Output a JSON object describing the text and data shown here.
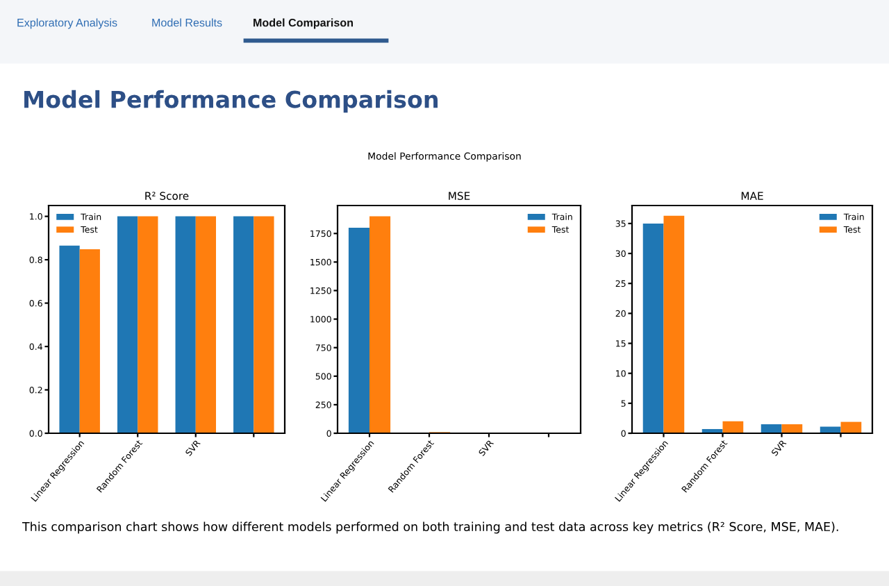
{
  "chart_data": [
    {
      "type": "other",
      "title": "Model Performance Comparison",
      "subtitle": "Model Performance Comparison",
      "annotations": [
        "Exploratory Analysis",
        "Model Results",
        "Model Comparison",
        "This comparison chart shows how different models performed on both training and test data across key metrics (R² Score, MSE, MAE)."
      ]
    },
    {
      "type": "bar",
      "title": "R² Score",
      "categories": [
        "Linear Regression",
        "Random Forest",
        "SVR",
        null
      ],
      "legend": "top left",
      "series": [
        {
          "name": "Train",
          "color": "#1f77b4",
          "values": [
            0.865,
            1.0,
            1.0,
            1.0
          ]
        },
        {
          "name": "Test",
          "color": "#ff7f0e",
          "values": [
            0.848,
            1.0,
            1.0,
            1.0
          ]
        }
      ],
      "ylim": [
        0,
        1.05
      ],
      "yticks": [
        {
          "value": 0,
          "label": "0.0"
        },
        {
          "value": 0.2,
          "label": "0.2"
        },
        {
          "value": 0.4,
          "label": "0.4"
        },
        {
          "value": 0.6,
          "label": "0.6"
        },
        {
          "value": 0.8,
          "label": "0.8"
        },
        {
          "value": 1.0,
          "label": "1.0"
        }
      ]
    },
    {
      "type": "bar",
      "title": "MSE",
      "categories": [
        "Linear Regression",
        "Random Forest",
        "SVR",
        null
      ],
      "legend": "top right",
      "series": [
        {
          "name": "Train",
          "color": "#1f77b4",
          "values": [
            1800,
            0,
            0,
            0
          ]
        },
        {
          "name": "Test",
          "color": "#ff7f0e",
          "values": [
            1900,
            10,
            0,
            0
          ]
        }
      ],
      "ylim": [
        0,
        1995
      ],
      "yticks": [
        0,
        250,
        500,
        750,
        1000,
        1250,
        1500,
        1750
      ]
    },
    {
      "type": "bar",
      "title": "MAE",
      "categories": [
        "Linear Regression",
        "Random Forest",
        "SVR",
        null
      ],
      "legend": "top right",
      "series": [
        {
          "name": "Train",
          "color": "#1f77b4",
          "values": [
            35.0,
            0.7,
            1.5,
            1.1
          ]
        },
        {
          "name": "Test",
          "color": "#ff7f0e",
          "values": [
            36.3,
            2.0,
            1.5,
            1.9
          ]
        }
      ],
      "ylim": [
        0,
        38
      ],
      "yticks": [
        0,
        5,
        10,
        15,
        20,
        25,
        30,
        35
      ]
    }
  ]
}
